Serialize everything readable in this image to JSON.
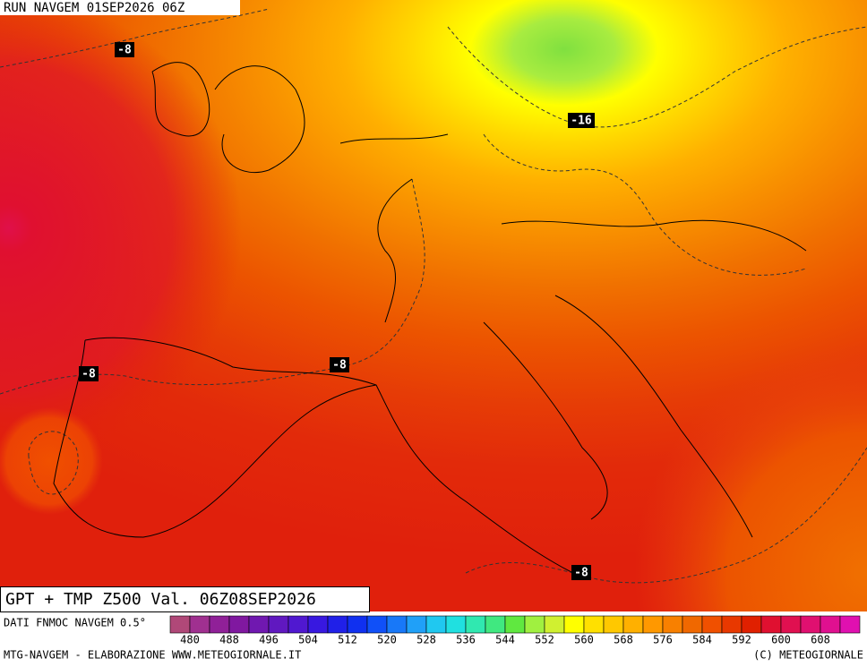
{
  "header": {
    "run": "RUN NAVGEM 01SEP2026 06Z"
  },
  "contour_labels": [
    "-8",
    "-16",
    "-8",
    "-8",
    "-8"
  ],
  "footer": {
    "title": "GPT + TMP Z500 Val. 06Z08SEP2026",
    "source": "DATI FNMOC NAVGEM 0.5°",
    "credit": "MTG-NAVGEM - ELABORAZIONE WWW.METEOGIORNALE.IT",
    "copyright": "(C) METEOGIORNALE"
  },
  "legend": {
    "ticks": [
      480,
      488,
      496,
      504,
      512,
      520,
      528,
      536,
      544,
      552,
      560,
      568,
      576,
      584,
      592,
      600,
      608
    ],
    "colors": [
      "#b04878",
      "#a03090",
      "#902098",
      "#8018a0",
      "#7018b0",
      "#6018c0",
      "#5018d0",
      "#3818e0",
      "#2020e8",
      "#1030f0",
      "#1050f8",
      "#1878f8",
      "#20a0f8",
      "#20c8f0",
      "#20e0e0",
      "#30e8b0",
      "#40e880",
      "#60e840",
      "#a0f040",
      "#d0f030",
      "#ffff00",
      "#ffe000",
      "#ffc800",
      "#ffb000",
      "#ff9800",
      "#f88000",
      "#f06800",
      "#f05000",
      "#e83800",
      "#e02000",
      "#e01030",
      "#e01050",
      "#e01070",
      "#e01090",
      "#e010b0"
    ]
  }
}
